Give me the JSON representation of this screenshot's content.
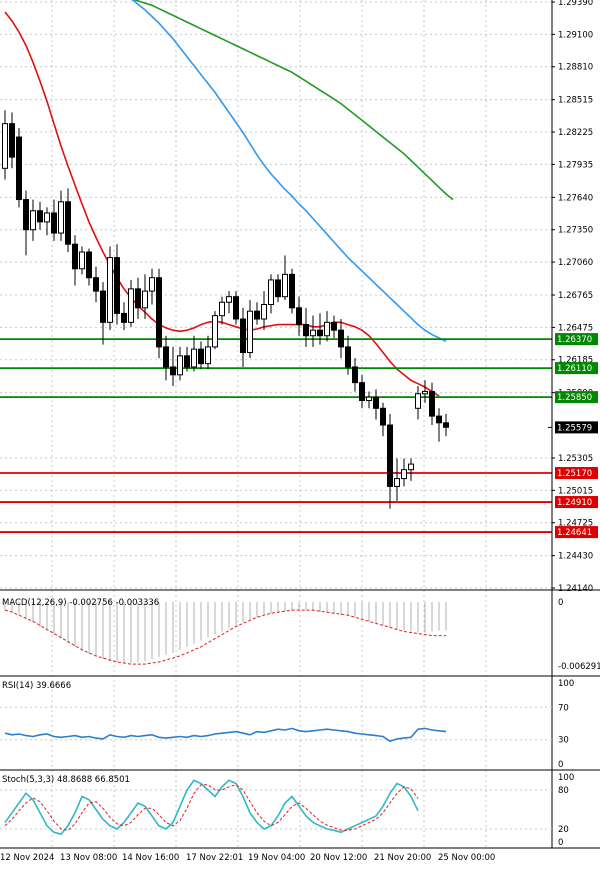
{
  "colors": {
    "background": "#ffffff",
    "grid": "#c8c8c8",
    "text": "#000000",
    "candle": "#000000",
    "candle_up_fill": "#ffffff",
    "ma_fast": "#e01010",
    "ma_mid": "#3399ee",
    "ma_slow": "#229922",
    "support_line": "#dd0000",
    "resistance_line": "#008800",
    "macd_signal": "#dd2222",
    "macd_hist": "#b0b0b0",
    "rsi": "#2a7fd0",
    "stoch_k": "#30b8c8",
    "stoch_d": "#dd2222"
  },
  "chart_data": [
    {
      "type": "candlestick",
      "title": "",
      "xlabels": [
        "12 Nov 2024",
        "13 Nov 08:00",
        "14 Nov 16:00",
        "17 Nov 22:01",
        "19 Nov 04:00",
        "20 Nov 12:00",
        "21 Nov 20:00",
        "25 Nov 00:00"
      ],
      "ylim": [
        1.2414,
        1.2939
      ],
      "ytick_labels": [
        "1.29390",
        "1.29100",
        "1.28810",
        "1.28515",
        "1.28225",
        "1.27935",
        "1.27640",
        "1.27350",
        "1.27060",
        "1.26765",
        "1.26475",
        "1.26185",
        "1.25890",
        "1.25305",
        "1.25015",
        "1.24725",
        "1.24430",
        "1.24140"
      ],
      "current_price": "1.25579",
      "horizontal_levels": [
        {
          "label": "1.26370",
          "kind": "resistance",
          "value": 1.2637
        },
        {
          "label": "1.26110",
          "kind": "resistance",
          "value": 1.2611
        },
        {
          "label": "1.25850",
          "kind": "resistance",
          "value": 1.2585
        },
        {
          "label": "1.25170",
          "kind": "support",
          "value": 1.2517
        },
        {
          "label": "1.24910",
          "kind": "support",
          "value": 1.2491
        },
        {
          "label": "1.24641",
          "kind": "support",
          "value": 1.24641
        }
      ],
      "candles": [
        {
          "o": 1.279,
          "h": 1.2842,
          "l": 1.278,
          "c": 1.283
        },
        {
          "o": 1.283,
          "h": 1.284,
          "l": 1.279,
          "c": 1.28
        },
        {
          "o": 1.2818,
          "h": 1.2826,
          "l": 1.2755,
          "c": 1.2762
        },
        {
          "o": 1.2762,
          "h": 1.277,
          "l": 1.2712,
          "c": 1.2735
        },
        {
          "o": 1.2735,
          "h": 1.2762,
          "l": 1.2725,
          "c": 1.2752
        },
        {
          "o": 1.2752,
          "h": 1.276,
          "l": 1.2735,
          "c": 1.2742
        },
        {
          "o": 1.2742,
          "h": 1.2755,
          "l": 1.273,
          "c": 1.275
        },
        {
          "o": 1.275,
          "h": 1.2762,
          "l": 1.2725,
          "c": 1.2732
        },
        {
          "o": 1.2732,
          "h": 1.277,
          "l": 1.2725,
          "c": 1.276
        },
        {
          "o": 1.276,
          "h": 1.2772,
          "l": 1.2715,
          "c": 1.2722
        },
        {
          "o": 1.2722,
          "h": 1.273,
          "l": 1.2685,
          "c": 1.27
        },
        {
          "o": 1.27,
          "h": 1.272,
          "l": 1.2695,
          "c": 1.2715
        },
        {
          "o": 1.2715,
          "h": 1.2718,
          "l": 1.2685,
          "c": 1.2692
        },
        {
          "o": 1.2692,
          "h": 1.2702,
          "l": 1.267,
          "c": 1.268
        },
        {
          "o": 1.268,
          "h": 1.2688,
          "l": 1.2632,
          "c": 1.2652
        },
        {
          "o": 1.2652,
          "h": 1.272,
          "l": 1.2645,
          "c": 1.271
        },
        {
          "o": 1.271,
          "h": 1.2722,
          "l": 1.265,
          "c": 1.266
        },
        {
          "o": 1.266,
          "h": 1.267,
          "l": 1.2645,
          "c": 1.2652
        },
        {
          "o": 1.2652,
          "h": 1.269,
          "l": 1.2648,
          "c": 1.2682
        },
        {
          "o": 1.2682,
          "h": 1.2692,
          "l": 1.2655,
          "c": 1.2665
        },
        {
          "o": 1.2665,
          "h": 1.2695,
          "l": 1.2655,
          "c": 1.268
        },
        {
          "o": 1.268,
          "h": 1.27,
          "l": 1.2668,
          "c": 1.2692
        },
        {
          "o": 1.2692,
          "h": 1.27,
          "l": 1.262,
          "c": 1.263
        },
        {
          "o": 1.263,
          "h": 1.264,
          "l": 1.26,
          "c": 1.2612
        },
        {
          "o": 1.2612,
          "h": 1.263,
          "l": 1.2595,
          "c": 1.2605
        },
        {
          "o": 1.2605,
          "h": 1.263,
          "l": 1.26,
          "c": 1.2622
        },
        {
          "o": 1.2622,
          "h": 1.263,
          "l": 1.2608,
          "c": 1.2612
        },
        {
          "o": 1.2612,
          "h": 1.264,
          "l": 1.2608,
          "c": 1.2628
        },
        {
          "o": 1.2628,
          "h": 1.2635,
          "l": 1.261,
          "c": 1.2615
        },
        {
          "o": 1.2615,
          "h": 1.264,
          "l": 1.261,
          "c": 1.263
        },
        {
          "o": 1.263,
          "h": 1.2662,
          "l": 1.2628,
          "c": 1.2658
        },
        {
          "o": 1.2658,
          "h": 1.2675,
          "l": 1.265,
          "c": 1.267
        },
        {
          "o": 1.267,
          "h": 1.268,
          "l": 1.266,
          "c": 1.2675
        },
        {
          "o": 1.2675,
          "h": 1.268,
          "l": 1.265,
          "c": 1.2655
        },
        {
          "o": 1.2655,
          "h": 1.2665,
          "l": 1.2612,
          "c": 1.2625
        },
        {
          "o": 1.2625,
          "h": 1.2672,
          "l": 1.262,
          "c": 1.2662
        },
        {
          "o": 1.2662,
          "h": 1.267,
          "l": 1.265,
          "c": 1.2655
        },
        {
          "o": 1.2655,
          "h": 1.268,
          "l": 1.2645,
          "c": 1.2668
        },
        {
          "o": 1.2668,
          "h": 1.2695,
          "l": 1.266,
          "c": 1.269
        },
        {
          "o": 1.269,
          "h": 1.2695,
          "l": 1.267,
          "c": 1.2675
        },
        {
          "o": 1.2675,
          "h": 1.2712,
          "l": 1.2672,
          "c": 1.2695
        },
        {
          "o": 1.2695,
          "h": 1.27,
          "l": 1.266,
          "c": 1.2665
        },
        {
          "o": 1.2665,
          "h": 1.2675,
          "l": 1.264,
          "c": 1.265
        },
        {
          "o": 1.265,
          "h": 1.2665,
          "l": 1.263,
          "c": 1.264
        },
        {
          "o": 1.264,
          "h": 1.2658,
          "l": 1.263,
          "c": 1.2645
        },
        {
          "o": 1.2645,
          "h": 1.266,
          "l": 1.2632,
          "c": 1.264
        },
        {
          "o": 1.264,
          "h": 1.2662,
          "l": 1.2635,
          "c": 1.2652
        },
        {
          "o": 1.2652,
          "h": 1.2658,
          "l": 1.2638,
          "c": 1.2645
        },
        {
          "o": 1.2645,
          "h": 1.2655,
          "l": 1.262,
          "c": 1.263
        },
        {
          "o": 1.263,
          "h": 1.264,
          "l": 1.2605,
          "c": 1.2612
        },
        {
          "o": 1.2612,
          "h": 1.262,
          "l": 1.259,
          "c": 1.2598
        },
        {
          "o": 1.2598,
          "h": 1.2605,
          "l": 1.2575,
          "c": 1.2582
        },
        {
          "o": 1.2582,
          "h": 1.259,
          "l": 1.2575,
          "c": 1.2585
        },
        {
          "o": 1.2585,
          "h": 1.2592,
          "l": 1.2565,
          "c": 1.2575
        },
        {
          "o": 1.2575,
          "h": 1.258,
          "l": 1.255,
          "c": 1.256
        },
        {
          "o": 1.256,
          "h": 1.257,
          "l": 1.2485,
          "c": 1.2505
        },
        {
          "o": 1.2505,
          "h": 1.253,
          "l": 1.2492,
          "c": 1.2512
        },
        {
          "o": 1.2512,
          "h": 1.253,
          "l": 1.2505,
          "c": 1.252
        },
        {
          "o": 1.252,
          "h": 1.253,
          "l": 1.251,
          "c": 1.2525
        },
        {
          "o": 1.2575,
          "h": 1.2595,
          "l": 1.2565,
          "c": 1.2588
        },
        {
          "o": 1.2588,
          "h": 1.26,
          "l": 1.258,
          "c": 1.259
        },
        {
          "o": 1.259,
          "h": 1.2598,
          "l": 1.256,
          "c": 1.2568
        },
        {
          "o": 1.2568,
          "h": 1.2575,
          "l": 1.2545,
          "c": 1.2562
        },
        {
          "o": 1.2562,
          "h": 1.257,
          "l": 1.255,
          "c": 1.2558
        }
      ],
      "moving_averages": [
        {
          "color_key": "ma_fast",
          "values": [
            1.293,
            1.2922,
            1.2912,
            1.29,
            1.2885,
            1.2868,
            1.285,
            1.283,
            1.281,
            1.2792,
            1.2775,
            1.2758,
            1.2742,
            1.2728,
            1.2715,
            1.2703,
            1.2692,
            1.2682,
            1.2674,
            1.2667,
            1.2661,
            1.2655,
            1.265,
            1.2647,
            1.2645,
            1.2644,
            1.2645,
            1.2647,
            1.265,
            1.2652,
            1.2653,
            1.2652,
            1.265,
            1.2648,
            1.2646,
            1.2645,
            1.2646,
            1.2648,
            1.2649,
            1.265,
            1.265,
            1.265,
            1.265,
            1.265,
            1.2648,
            1.2648,
            1.265,
            1.2652,
            1.2652,
            1.265,
            1.2648,
            1.2645,
            1.264,
            1.2633,
            1.2625,
            1.2617,
            1.261,
            1.2605,
            1.26,
            1.2597,
            1.2594,
            1.259,
            1.2586
          ]
        },
        {
          "color_key": "ma_mid",
          "values": [
            1.295,
            1.2946,
            1.2942,
            1.2937,
            1.2932,
            1.2926,
            1.292,
            1.2913,
            1.2906,
            1.2898,
            1.289,
            1.2882,
            1.2874,
            1.2866,
            1.2858,
            1.2849,
            1.284,
            1.2831,
            1.2822,
            1.2812,
            1.2802,
            1.2793,
            1.2785,
            1.2778,
            1.2771,
            1.2765,
            1.2758,
            1.2752,
            1.2745,
            1.2738,
            1.2731,
            1.2724,
            1.2717,
            1.271,
            1.2704,
            1.2698,
            1.2692,
            1.2686,
            1.268,
            1.2674,
            1.2668,
            1.2662,
            1.2656,
            1.265,
            1.2645,
            1.2641,
            1.2638,
            1.2635
          ]
        },
        {
          "color_key": "ma_slow",
          "values": [
            1.295,
            1.2948,
            1.2946,
            1.2944,
            1.2942,
            1.294,
            1.2938,
            1.2936,
            1.2933,
            1.293,
            1.2927,
            1.2924,
            1.2921,
            1.2918,
            1.2915,
            1.2912,
            1.2909,
            1.2906,
            1.2903,
            1.29,
            1.2897,
            1.2894,
            1.2891,
            1.2888,
            1.2885,
            1.2882,
            1.2879,
            1.2876,
            1.2872,
            1.2868,
            1.2864,
            1.286,
            1.2856,
            1.2852,
            1.2848,
            1.2843,
            1.2838,
            1.2833,
            1.2828,
            1.2823,
            1.2818,
            1.2813,
            1.2808,
            1.2803,
            1.2797,
            1.2791,
            1.2785,
            1.2779,
            1.2773,
            1.2767,
            1.2762
          ]
        }
      ]
    },
    {
      "type": "macd",
      "label": "MACD(12,26,9) -0.002756 -0.003336",
      "ytick_labels": [
        "0",
        "-0.006291"
      ],
      "ylim": [
        -0.006291,
        0
      ],
      "histogram": [
        -0.0008,
        -0.001,
        -0.0012,
        -0.0016,
        -0.002,
        -0.0024,
        -0.0028,
        -0.0032,
        -0.0036,
        -0.004,
        -0.0044,
        -0.0048,
        -0.0051,
        -0.0054,
        -0.0056,
        -0.0058,
        -0.0059,
        -0.006,
        -0.006,
        -0.0059,
        -0.0058,
        -0.0056,
        -0.0054,
        -0.0052,
        -0.005,
        -0.0047,
        -0.0044,
        -0.0041,
        -0.0038,
        -0.0035,
        -0.0032,
        -0.0029,
        -0.0026,
        -0.0023,
        -0.002,
        -0.0017,
        -0.0015,
        -0.0013,
        -0.0011,
        -0.001,
        -0.0009,
        -0.0008,
        -0.0008,
        -0.0008,
        -0.0009,
        -0.001,
        -0.0011,
        -0.0012,
        -0.0013,
        -0.0014,
        -0.0015,
        -0.0017,
        -0.0019,
        -0.0021,
        -0.0023,
        -0.0025,
        -0.0027,
        -0.0028,
        -0.0029,
        -0.003,
        -0.003,
        -0.0029,
        -0.0028,
        -0.0028
      ],
      "signal": [
        -0.0008,
        -0.001,
        -0.0013,
        -0.0016,
        -0.0019,
        -0.0023,
        -0.0027,
        -0.0031,
        -0.0035,
        -0.0039,
        -0.0043,
        -0.0047,
        -0.005,
        -0.0053,
        -0.0055,
        -0.0057,
        -0.0059,
        -0.006,
        -0.0061,
        -0.0061,
        -0.0061,
        -0.006,
        -0.0059,
        -0.0057,
        -0.0055,
        -0.0053,
        -0.005,
        -0.0047,
        -0.0044,
        -0.004,
        -0.0036,
        -0.0032,
        -0.0028,
        -0.0024,
        -0.0021,
        -0.0018,
        -0.0015,
        -0.0013,
        -0.0011,
        -0.001,
        -0.0009,
        -0.0008,
        -0.0008,
        -0.0008,
        -0.0008,
        -0.0009,
        -0.001,
        -0.0011,
        -0.0012,
        -0.0013,
        -0.0015,
        -0.0017,
        -0.0019,
        -0.0021,
        -0.0023,
        -0.0025,
        -0.0027,
        -0.0029,
        -0.003,
        -0.0031,
        -0.0032,
        -0.0033,
        -0.0033,
        -0.0033
      ]
    },
    {
      "type": "line",
      "label": "RSI(14) 39.6666",
      "ytick_labels": [
        "100",
        "70",
        "30",
        "0"
      ],
      "ylim": [
        0,
        100
      ],
      "levels": [
        70,
        30
      ],
      "values": [
        38,
        36,
        37,
        35,
        34,
        36,
        37,
        34,
        33,
        34,
        35,
        33,
        34,
        32,
        31,
        36,
        34,
        33,
        35,
        34,
        35,
        36,
        33,
        32,
        33,
        34,
        33,
        35,
        34,
        35,
        37,
        38,
        39,
        40,
        38,
        36,
        40,
        39,
        41,
        43,
        42,
        44,
        41,
        40,
        41,
        42,
        43,
        42,
        41,
        40,
        38,
        37,
        36,
        35,
        34,
        28,
        31,
        32,
        33,
        43,
        44,
        42,
        41,
        40
      ]
    },
    {
      "type": "line",
      "label": "Stoch(5,3,3) 48.8688 66.8501",
      "ytick_labels": [
        "100",
        "80",
        "20",
        "0"
      ],
      "ylim": [
        0,
        100
      ],
      "levels": [
        80,
        20
      ],
      "k": [
        30,
        45,
        60,
        75,
        65,
        45,
        25,
        15,
        12,
        25,
        45,
        70,
        65,
        50,
        35,
        25,
        20,
        30,
        45,
        60,
        55,
        40,
        25,
        20,
        30,
        55,
        80,
        95,
        90,
        80,
        70,
        85,
        95,
        90,
        70,
        45,
        30,
        20,
        25,
        40,
        60,
        70,
        55,
        40,
        30,
        25,
        20,
        18,
        15,
        20,
        25,
        30,
        35,
        40,
        55,
        75,
        90,
        85,
        70,
        48
      ],
      "d": [
        25,
        35,
        48,
        60,
        68,
        62,
        48,
        32,
        20,
        18,
        28,
        45,
        60,
        62,
        52,
        38,
        28,
        25,
        30,
        42,
        52,
        52,
        42,
        30,
        25,
        33,
        52,
        75,
        88,
        88,
        80,
        80,
        85,
        88,
        80,
        62,
        45,
        32,
        25,
        30,
        42,
        55,
        60,
        52,
        42,
        32,
        26,
        22,
        18,
        18,
        20,
        25,
        30,
        35,
        45,
        60,
        75,
        85,
        82,
        67
      ]
    }
  ]
}
